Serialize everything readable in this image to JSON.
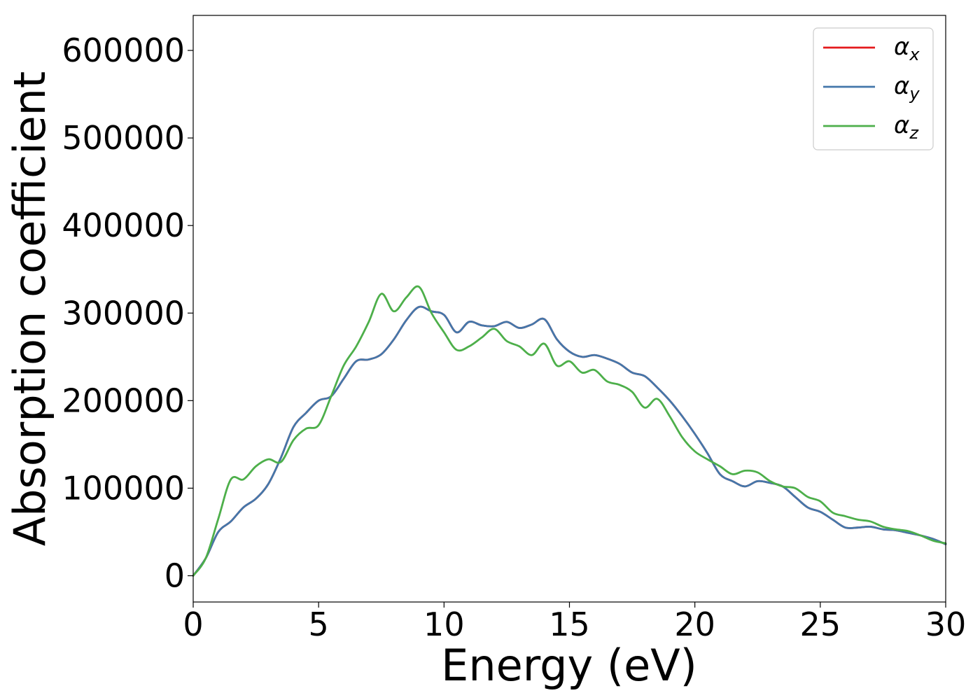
{
  "chart_data": {
    "type": "line",
    "title": "",
    "xlabel": "Energy (eV)",
    "ylabel": "Absorption coefficient",
    "xlim": [
      0,
      30
    ],
    "ylim": [
      -30000,
      640000
    ],
    "xticks": [
      0,
      5,
      10,
      15,
      20,
      25,
      30
    ],
    "xtick_labels": [
      "0",
      "5",
      "10",
      "15",
      "20",
      "25",
      "30"
    ],
    "yticks": [
      0,
      100000,
      200000,
      300000,
      400000,
      500000,
      600000
    ],
    "ytick_labels": [
      "0",
      "100000",
      "200000",
      "300000",
      "400000",
      "500000",
      "600000"
    ],
    "grid": false,
    "legend_position": "top-right",
    "series": [
      {
        "name": "α",
        "subscript": "x",
        "color": "#e41a1c",
        "x": [
          0,
          0.5,
          1,
          1.5,
          2,
          2.5,
          3,
          3.5,
          4,
          4.5,
          5,
          5.5,
          6,
          6.5,
          7,
          7.5,
          8,
          8.5,
          9,
          9.5,
          10,
          10.5,
          11,
          11.5,
          12,
          12.5,
          13,
          13.5,
          14,
          14.5,
          15,
          15.5,
          16,
          16.5,
          17,
          17.5,
          18,
          18.5,
          19,
          19.5,
          20,
          20.5,
          21,
          21.5,
          22,
          22.5,
          23,
          23.5,
          24,
          24.5,
          25,
          25.5,
          26,
          26.5,
          27,
          27.5,
          28,
          28.5,
          29,
          29.5,
          30
        ],
        "values": [
          0,
          20000,
          50000,
          62000,
          78000,
          88000,
          105000,
          135000,
          170000,
          186000,
          200000,
          205000,
          225000,
          245000,
          247000,
          253000,
          270000,
          292000,
          307000,
          302000,
          298000,
          278000,
          290000,
          286000,
          285000,
          290000,
          283000,
          287000,
          293000,
          270000,
          256000,
          250000,
          252000,
          248000,
          242000,
          232000,
          228000,
          215000,
          200000,
          182000,
          162000,
          140000,
          116000,
          108000,
          102000,
          108000,
          106000,
          102000,
          90000,
          78000,
          73000,
          64000,
          55000,
          55000,
          56000,
          53000,
          52000,
          49000,
          46000,
          42000,
          36000
        ]
      },
      {
        "name": "α",
        "subscript": "y",
        "color": "#4477aa",
        "x": [
          0,
          0.5,
          1,
          1.5,
          2,
          2.5,
          3,
          3.5,
          4,
          4.5,
          5,
          5.5,
          6,
          6.5,
          7,
          7.5,
          8,
          8.5,
          9,
          9.5,
          10,
          10.5,
          11,
          11.5,
          12,
          12.5,
          13,
          13.5,
          14,
          14.5,
          15,
          15.5,
          16,
          16.5,
          17,
          17.5,
          18,
          18.5,
          19,
          19.5,
          20,
          20.5,
          21,
          21.5,
          22,
          22.5,
          23,
          23.5,
          24,
          24.5,
          25,
          25.5,
          26,
          26.5,
          27,
          27.5,
          28,
          28.5,
          29,
          29.5,
          30
        ],
        "values": [
          0,
          20000,
          50000,
          62000,
          78000,
          88000,
          105000,
          135000,
          170000,
          186000,
          200000,
          205000,
          225000,
          245000,
          247000,
          253000,
          270000,
          292000,
          307000,
          302000,
          298000,
          278000,
          290000,
          286000,
          285000,
          290000,
          283000,
          287000,
          293000,
          270000,
          256000,
          250000,
          252000,
          248000,
          242000,
          232000,
          228000,
          215000,
          200000,
          182000,
          162000,
          140000,
          116000,
          108000,
          102000,
          108000,
          106000,
          102000,
          90000,
          78000,
          73000,
          64000,
          55000,
          55000,
          56000,
          53000,
          52000,
          49000,
          46000,
          42000,
          36000
        ]
      },
      {
        "name": "α",
        "subscript": "z",
        "color": "#4daf4a",
        "x": [
          0,
          0.5,
          1,
          1.5,
          2,
          2.5,
          3,
          3.5,
          4,
          4.5,
          5,
          5.5,
          6,
          6.5,
          7,
          7.5,
          8,
          8.5,
          9,
          9.5,
          10,
          10.5,
          11,
          11.5,
          12,
          12.5,
          13,
          13.5,
          14,
          14.5,
          15,
          15.5,
          16,
          16.5,
          17,
          17.5,
          18,
          18.5,
          19,
          19.5,
          20,
          20.5,
          21,
          21.5,
          22,
          22.5,
          23,
          23.5,
          24,
          24.5,
          25,
          25.5,
          26,
          26.5,
          27,
          27.5,
          28,
          28.5,
          29,
          29.5,
          30
        ],
        "values": [
          0,
          20000,
          65000,
          110000,
          110000,
          125000,
          133000,
          130000,
          155000,
          168000,
          172000,
          205000,
          240000,
          262000,
          290000,
          322000,
          302000,
          318000,
          330000,
          300000,
          278000,
          258000,
          262000,
          272000,
          282000,
          268000,
          262000,
          252000,
          265000,
          240000,
          245000,
          232000,
          235000,
          222000,
          218000,
          210000,
          192000,
          202000,
          182000,
          158000,
          142000,
          133000,
          125000,
          116000,
          120000,
          118000,
          108000,
          102000,
          100000,
          90000,
          85000,
          72000,
          68000,
          64000,
          62000,
          56000,
          53000,
          51000,
          46000,
          40000,
          37000
        ]
      }
    ]
  }
}
